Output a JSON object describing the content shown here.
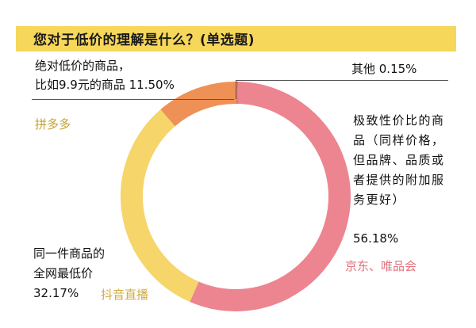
{
  "colors": {
    "title_bar": "#f7d75a",
    "jd_vip": "#ec8590",
    "douyin": "#f6d56b",
    "pdd": "#ee9156",
    "other": "#e0645a",
    "pdd_label": "#c5a236",
    "douyin_label": "#d2ac3a",
    "jd_label": "#e0747e"
  },
  "chart_data": {
    "type": "pie",
    "title": "您对于低价的理解是什么？(单选题)",
    "donut": true,
    "slices": [
      {
        "key": "other",
        "label_text": "其他  0.15%",
        "value": 0.15,
        "color": "#e0645a"
      },
      {
        "key": "jd_vip",
        "label_text": "极致性价比的商品（同样价格，但品牌、品质或者提供的附加服务更好）",
        "value": 56.18,
        "color": "#ec8590",
        "platform": "京东、唯品会"
      },
      {
        "key": "douyin",
        "label_text": "同一件商品的全网最低价",
        "value": 32.17,
        "color": "#f6d56b",
        "platform": "抖音直播"
      },
      {
        "key": "pdd",
        "label_text": "绝对低价的商品，比如9.9元的商品",
        "value": 11.5,
        "color": "#ee9156",
        "platform": "拼多多"
      }
    ]
  },
  "labels": {
    "pdd_line1": "绝对低价的商品，",
    "pdd_line2": "比如9.9元的商品  11.50%",
    "pdd_platform": "拼多多",
    "other_line": "其他  0.15%",
    "jd_text": "极致性价比的商品（同样价格，但品牌、品质或者提供的附加服务更好）",
    "jd_pct": "56.18%",
    "jd_platform": "京东、唯品会",
    "dy_line1": "同一件商品的",
    "dy_line2": "全网最低价",
    "dy_pct": "32.17%",
    "dy_platform": "抖音直播"
  }
}
